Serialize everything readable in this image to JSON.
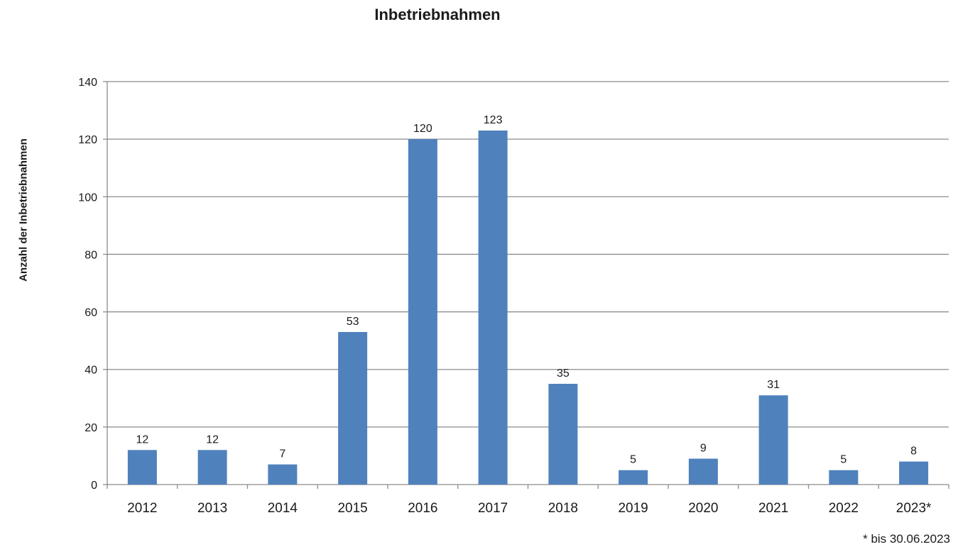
{
  "chart_data": {
    "type": "bar",
    "title": "Inbetriebnahmen",
    "ylabel": "Anzahl der Inbetriebnahmen",
    "xlabel": "",
    "categories": [
      "2012",
      "2013",
      "2014",
      "2015",
      "2016",
      "2017",
      "2018",
      "2019",
      "2020",
      "2021",
      "2022",
      "2023*"
    ],
    "values": [
      12,
      12,
      7,
      53,
      120,
      123,
      35,
      5,
      9,
      31,
      5,
      8
    ],
    "ylim": [
      0,
      140
    ],
    "yticks": [
      0,
      20,
      40,
      60,
      80,
      100,
      120,
      140
    ],
    "grid": true,
    "data_labels": true,
    "bar_color": "#4f81bd",
    "footnote": "* bis 30.06.2023"
  }
}
